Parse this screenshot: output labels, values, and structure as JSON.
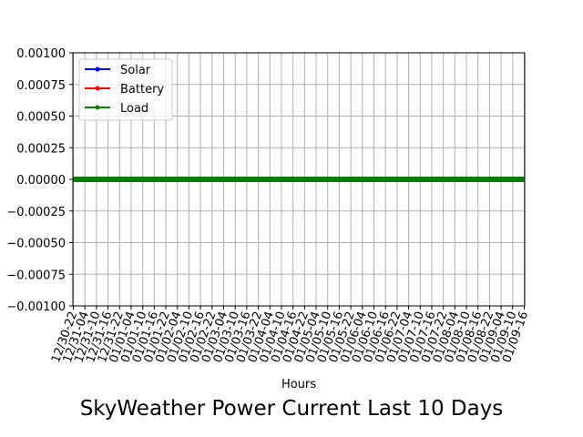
{
  "chart_data": {
    "type": "line",
    "title": "SkyWeather Power Current Last 10 Days",
    "xlabel": "Hours",
    "ylabel": "",
    "ylim": [
      -0.001,
      0.001
    ],
    "yticks": [
      "0.00100",
      "0.00075",
      "0.00050",
      "0.00025",
      "0.00000",
      "−0.00025",
      "−0.00050",
      "−0.00075",
      "−0.00100"
    ],
    "ytick_values": [
      0.001,
      0.00075,
      0.0005,
      0.00025,
      0,
      -0.00025,
      -0.0005,
      -0.00075,
      -0.001
    ],
    "xticks": [
      "12/30-22",
      "12/31-04",
      "12/31-10",
      "12/31-16",
      "12/31-22",
      "01/01-04",
      "01/01-10",
      "01/01-16",
      "01/01-22",
      "01/02-04",
      "01/02-10",
      "01/02-16",
      "01/02-22",
      "01/03-04",
      "01/03-10",
      "01/03-16",
      "01/03-22",
      "01/04-04",
      "01/04-10",
      "01/04-16",
      "01/04-22",
      "01/05-04",
      "01/05-10",
      "01/05-16",
      "01/05-22",
      "01/06-04",
      "01/06-10",
      "01/06-16",
      "01/06-22",
      "01/07-04",
      "01/07-10",
      "01/07-16",
      "01/07-22",
      "01/08-04",
      "01/08-10",
      "01/08-16",
      "01/08-22",
      "01/09-04",
      "01/09-10",
      "01/09-16"
    ],
    "grid": true,
    "legend_position": "top-left",
    "series": [
      {
        "name": "Solar",
        "color": "#0000ff",
        "value": 0
      },
      {
        "name": "Battery",
        "color": "#ff0000",
        "value": 0
      },
      {
        "name": "Load",
        "color": "#008000",
        "value": 0
      }
    ]
  }
}
